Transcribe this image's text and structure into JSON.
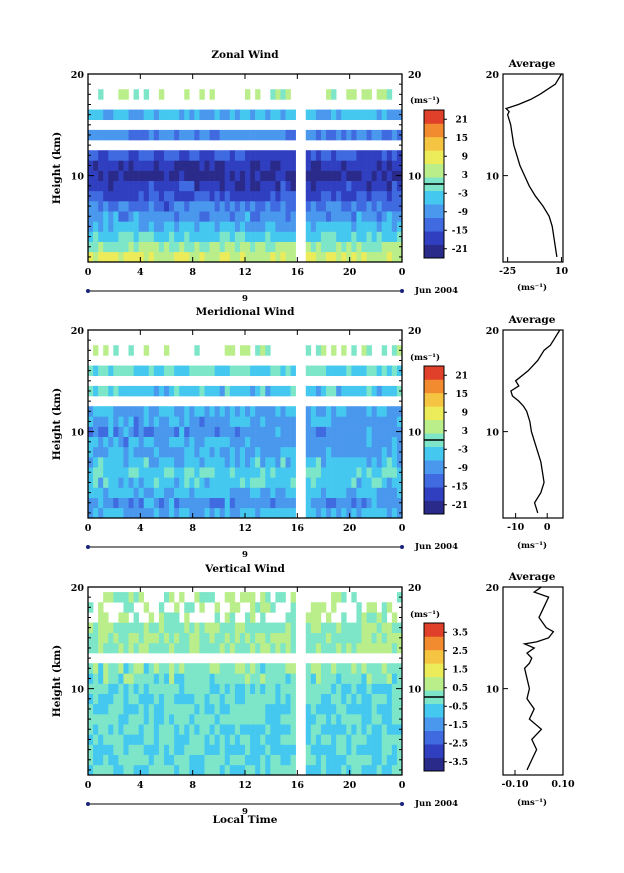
{
  "figure": {
    "xlabel": "Local Time",
    "date_label": "Jun 2004",
    "day_label": "9"
  },
  "chart_data": [
    {
      "type": "heatmap",
      "title": "Zonal Wind",
      "xlabel": "",
      "ylabel": "Height (km)",
      "xticks": [
        "0",
        "4",
        "8",
        "12",
        "16",
        "20",
        "0"
      ],
      "yticks": [
        0,
        10,
        20
      ],
      "ytick_labels": [
        "",
        "10",
        "20"
      ],
      "ylim": [
        1.5,
        20
      ],
      "data_gap_local_time": 16,
      "colorbar": {
        "unit": "(ms⁻¹)",
        "min": -24,
        "max": 24,
        "ticks": [
          "21",
          "15",
          "9",
          "3",
          "-3",
          "-9",
          "-15",
          "-21"
        ],
        "zero_line": true
      },
      "field": {
        "heights_km": [
          2,
          3,
          4,
          5,
          6,
          7,
          8,
          9,
          10,
          11,
          12,
          13,
          14,
          15,
          16,
          17,
          18,
          19
        ],
        "value_ms": [
          6,
          2,
          -3,
          -6,
          -9,
          -12,
          -15,
          -18,
          -21,
          -19,
          -16,
          null,
          -10,
          null,
          -6,
          null,
          3,
          null
        ]
      }
    },
    {
      "type": "line",
      "title": "Average",
      "xlabel": "(ms⁻¹)",
      "ylabel": "",
      "xlim": [
        -28,
        11
      ],
      "ylim": [
        1.5,
        20
      ],
      "xticks": [
        "-25",
        "10"
      ],
      "yticks": [
        "10",
        "20"
      ],
      "x": [
        7,
        6,
        5,
        4,
        2,
        -2,
        -7,
        -11,
        -14,
        -17,
        -19,
        -21,
        -22,
        -23,
        -24,
        -25,
        -24,
        -26,
        -18,
        -10,
        -4,
        6,
        10
      ],
      "y": [
        2,
        3,
        4,
        5,
        6,
        7,
        8,
        9,
        10,
        11,
        12,
        13,
        14,
        15,
        15.5,
        16,
        16.3,
        16.6,
        17,
        17.5,
        18,
        19,
        20
      ]
    },
    {
      "type": "heatmap",
      "title": "Meridional Wind",
      "xlabel": "",
      "ylabel": "Height (km)",
      "xticks": [
        "0",
        "4",
        "8",
        "12",
        "16",
        "20",
        "0"
      ],
      "yticks": [
        0,
        10,
        20
      ],
      "ytick_labels": [
        "",
        "10",
        "20"
      ],
      "ylim": [
        1.5,
        20
      ],
      "data_gap_local_time": 16,
      "colorbar": {
        "unit": "(ms⁻¹)",
        "min": -24,
        "max": 24,
        "ticks": [
          "21",
          "15",
          "9",
          "3",
          "-3",
          "-9",
          "-15",
          "-21"
        ],
        "zero_line": true
      },
      "field": {
        "heights_km": [
          2,
          3,
          4,
          5,
          6,
          7,
          8,
          9,
          10,
          11,
          12,
          13,
          14,
          15,
          16,
          17,
          18,
          19
        ],
        "value_ms": [
          -6,
          -9,
          -6,
          -4,
          -3,
          -5,
          -7,
          -8,
          -9,
          -8,
          -6,
          null,
          -4,
          null,
          -2,
          null,
          3,
          null
        ]
      }
    },
    {
      "type": "line",
      "title": "Average",
      "xlabel": "(ms⁻¹)",
      "ylabel": "",
      "xlim": [
        -14,
        5
      ],
      "ylim": [
        1.5,
        20
      ],
      "xticks": [
        "-10",
        "0"
      ],
      "yticks": [
        "10",
        "20"
      ],
      "x": [
        -3,
        -4,
        -2,
        -1,
        -1.5,
        -2,
        -3,
        -4,
        -5,
        -5.5,
        -6.5,
        -7.5,
        -9,
        -11,
        -11.5,
        -9,
        -10,
        -6,
        -3,
        -1,
        1,
        2,
        4
      ],
      "y": [
        2,
        3,
        4,
        5,
        6,
        7,
        8,
        9,
        10,
        11,
        12,
        12.5,
        13,
        13.5,
        14,
        14.5,
        15,
        16,
        17,
        18,
        18.5,
        19,
        20
      ]
    },
    {
      "type": "heatmap",
      "title": "Vertical Wind",
      "xlabel": "Local Time",
      "ylabel": "Height (km)",
      "xticks": [
        "0",
        "4",
        "8",
        "12",
        "16",
        "20",
        "0"
      ],
      "yticks": [
        0,
        10,
        20
      ],
      "ytick_labels": [
        "",
        "10",
        "20"
      ],
      "ylim": [
        1.5,
        20
      ],
      "data_gap_local_time": 16,
      "colorbar": {
        "unit": "(ms⁻¹)",
        "min": -4,
        "max": 4,
        "ticks": [
          "3.5",
          "2.5",
          "1.5",
          "0.5",
          "-0.5",
          "-1.5",
          "-2.5",
          "-3.5"
        ],
        "zero_line": true
      },
      "field": {
        "heights_km": [
          2,
          3,
          4,
          5,
          6,
          7,
          8,
          9,
          10,
          11,
          12,
          13,
          14,
          15,
          16,
          17,
          18,
          19
        ],
        "value_ms": [
          -0.3,
          -0.4,
          -0.5,
          -0.3,
          -0.4,
          -0.2,
          -0.5,
          -0.3,
          -0.2,
          -0.1,
          0.1,
          null,
          0.2,
          0.3,
          0.2,
          0.3,
          0.4,
          0.3
        ]
      }
    },
    {
      "type": "line",
      "title": "Average",
      "xlabel": "(ms⁻¹)",
      "ylabel": "",
      "xlim": [
        -0.15,
        0.1
      ],
      "ylim": [
        1.5,
        20
      ],
      "xticks": [
        "-0.10",
        "0.10"
      ],
      "yticks": [
        "10",
        "20"
      ],
      "x": [
        -0.05,
        -0.03,
        -0.01,
        -0.03,
        0.01,
        -0.04,
        -0.02,
        -0.05,
        -0.04,
        -0.05,
        -0.06,
        -0.04,
        -0.03,
        -0.05,
        -0.02,
        -0.04,
        -0.06,
        -0.01,
        0.04,
        0.05,
        0.06,
        0.03,
        0.0,
        0.02,
        0.04,
        -0.02,
        0.01
      ],
      "y": [
        2,
        3,
        4,
        5,
        6,
        7,
        8,
        9,
        10,
        11,
        12,
        12.5,
        13,
        13.5,
        14,
        14.2,
        14.4,
        14.6,
        15,
        15.3,
        15.6,
        16,
        17,
        18,
        19,
        19.5,
        20
      ]
    }
  ]
}
